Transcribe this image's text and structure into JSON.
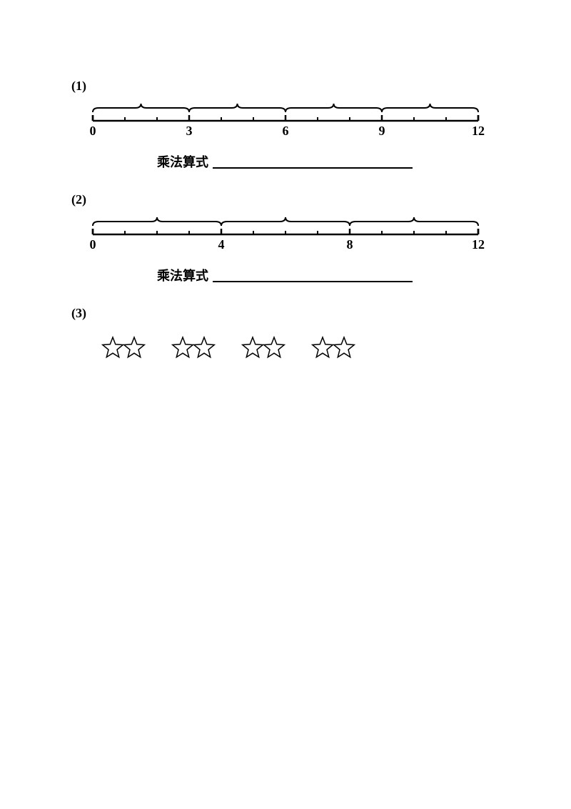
{
  "problems": {
    "p1": {
      "label": "(1)",
      "formula_label": "乘法算式",
      "line": {
        "min": 0,
        "max": 12,
        "majors": [
          0,
          3,
          6,
          9,
          12
        ],
        "minors": [
          1,
          2,
          4,
          5,
          7,
          8,
          10,
          11
        ],
        "brace_groups": 4
      }
    },
    "p2": {
      "label": "(2)",
      "formula_label": "乘法算式",
      "line": {
        "min": 0,
        "max": 12,
        "majors": [
          0,
          4,
          8,
          12
        ],
        "minors": [
          1,
          2,
          3,
          5,
          6,
          7,
          9,
          10,
          11
        ],
        "brace_groups": 3
      }
    },
    "p3": {
      "label": "(3)",
      "star_groups": 4,
      "stars_per_group": 2
    }
  },
  "style": {
    "stroke": "#000000",
    "label_fontsize": 18,
    "formula_line_width": 280,
    "numberline_width": 560,
    "numberline_height": 60,
    "star_size": 36
  }
}
